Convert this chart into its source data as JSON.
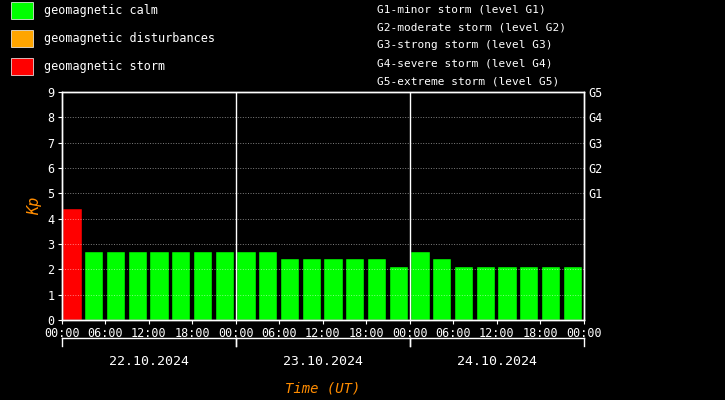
{
  "background_color": "#000000",
  "plot_bg_color": "#000000",
  "text_color": "#ffffff",
  "ylabel_color": "#ff8c00",
  "xlabel_color": "#ff8c00",
  "grid_color": "#ffffff",
  "bar_edge_color": "#000000",
  "kp_values": [
    4.4,
    2.7,
    2.7,
    2.7,
    2.7,
    2.7,
    2.7,
    2.7,
    2.7,
    2.7,
    2.4,
    2.4,
    2.4,
    2.4,
    2.4,
    2.1,
    2.7,
    2.4,
    2.1,
    2.1,
    2.1,
    2.1,
    2.1,
    2.1
  ],
  "bar_colors": [
    "#ff0000",
    "#00ff00",
    "#00ff00",
    "#00ff00",
    "#00ff00",
    "#00ff00",
    "#00ff00",
    "#00ff00",
    "#00ff00",
    "#00ff00",
    "#00ff00",
    "#00ff00",
    "#00ff00",
    "#00ff00",
    "#00ff00",
    "#00ff00",
    "#00ff00",
    "#00ff00",
    "#00ff00",
    "#00ff00",
    "#00ff00",
    "#00ff00",
    "#00ff00",
    "#00ff00"
  ],
  "ylim": [
    0,
    9
  ],
  "yticks": [
    0,
    1,
    2,
    3,
    4,
    5,
    6,
    7,
    8,
    9
  ],
  "ylabel": "Kp",
  "xlabel": "Time (UT)",
  "dates": [
    "22.10.2024",
    "23.10.2024",
    "24.10.2024"
  ],
  "legend_items": [
    {
      "label": "geomagnetic calm",
      "color": "#00ff00"
    },
    {
      "label": "geomagnetic disturbances",
      "color": "#ffa500"
    },
    {
      "label": "geomagnetic storm",
      "color": "#ff0000"
    }
  ],
  "right_texts": [
    "G1-minor storm (level G1)",
    "G2-moderate storm (level G2)",
    "G3-strong storm (level G3)",
    "G4-severe storm (level G4)",
    "G5-extreme storm (level G5)"
  ],
  "right_axis_labels": [
    "G1",
    "G2",
    "G3",
    "G4",
    "G5"
  ],
  "right_axis_yticks": [
    5,
    6,
    7,
    8,
    9
  ],
  "bar_width": 0.85,
  "font_size": 8.5,
  "font_family": "monospace"
}
